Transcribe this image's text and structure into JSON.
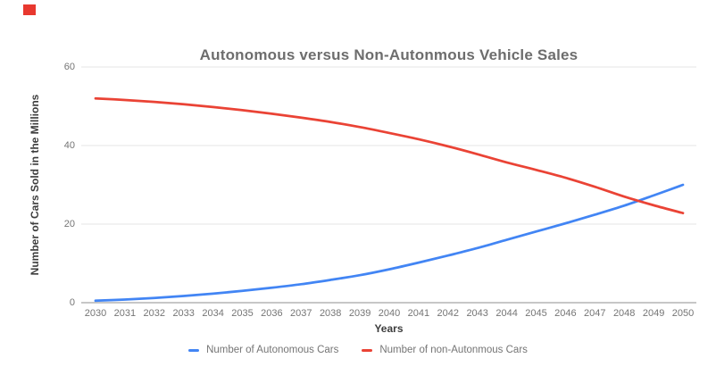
{
  "window": {
    "recording_indicator_color": "#e8382f",
    "background_color": "#ffffff"
  },
  "chart_data": {
    "type": "line",
    "title": "Autonomous versus Non-Autonmous Vehicle Sales",
    "xlabel": "Years",
    "ylabel": "Number of Cars Sold in the Millions",
    "ylim": [
      0,
      60
    ],
    "yticks": [
      0,
      20,
      40,
      60
    ],
    "grid": "horizontal",
    "legend_position": "bottom",
    "x": [
      2030,
      2031,
      2032,
      2033,
      2034,
      2035,
      2036,
      2037,
      2038,
      2039,
      2040,
      2041,
      2042,
      2043,
      2044,
      2045,
      2046,
      2047,
      2048,
      2049,
      2050
    ],
    "series": [
      {
        "name": "Number of Autonomous Cars",
        "color": "#4285f4",
        "values": [
          0.5,
          0.8,
          1.2,
          1.7,
          2.3,
          3.0,
          3.8,
          4.7,
          5.8,
          7.0,
          8.5,
          10.2,
          12.0,
          13.9,
          16.0,
          18.1,
          20.2,
          22.4,
          24.7,
          27.3,
          30.0
        ]
      },
      {
        "name": "Number of non-Autonmous Cars",
        "color": "#ea4335",
        "values": [
          52.0,
          51.6,
          51.1,
          50.5,
          49.8,
          49.0,
          48.1,
          47.1,
          46.0,
          44.7,
          43.2,
          41.6,
          39.8,
          37.8,
          35.7,
          33.8,
          31.8,
          29.5,
          27.0,
          24.8,
          22.8
        ]
      }
    ],
    "axis_colors": {
      "gridline": "#e6e6e6",
      "baseline": "#8f8f8f",
      "tick_label": "#757575",
      "axis_title": "#3d3d3d",
      "chart_title": "#6d6d6d"
    }
  }
}
